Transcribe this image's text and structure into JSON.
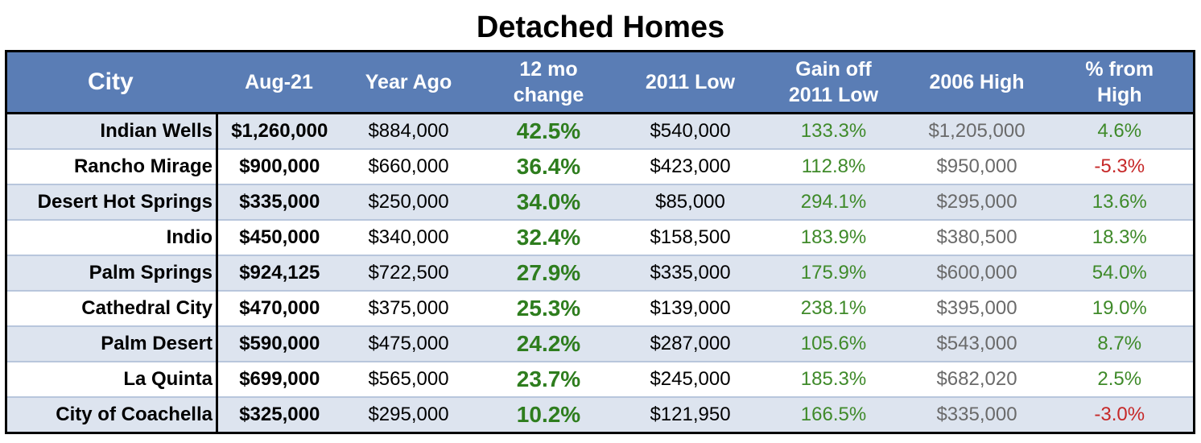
{
  "title": "Detached Homes",
  "columns": {
    "city": "City",
    "aug": "Aug-21",
    "year_ago": "Year Ago",
    "change_line1": "12 mo",
    "change_line2": "change",
    "low_2011": "2011 Low",
    "gain_line1": "Gain off",
    "gain_line2": "2011 Low",
    "high_2006": "2006 High",
    "pct_line1": "% from",
    "pct_line2": "High"
  },
  "colors": {
    "header_bg": "#5a7db5",
    "band_bg": "#dde4ef",
    "positive": "#3f8a2a",
    "change": "#2e7d1e",
    "negative": "#c62828",
    "high_text": "#6a6a6a"
  },
  "rows": [
    {
      "city": "Indian Wells",
      "aug": "$1,260,000",
      "year_ago": "$884,000",
      "change": "42.5%",
      "low_2011": "$540,000",
      "gain": "133.3%",
      "high_2006": "$1,205,000",
      "pct_from_high": "4.6%",
      "pct_sign": "pos"
    },
    {
      "city": "Rancho Mirage",
      "aug": "$900,000",
      "year_ago": "$660,000",
      "change": "36.4%",
      "low_2011": "$423,000",
      "gain": "112.8%",
      "high_2006": "$950,000",
      "pct_from_high": "-5.3%",
      "pct_sign": "neg"
    },
    {
      "city": "Desert Hot Springs",
      "aug": "$335,000",
      "year_ago": "$250,000",
      "change": "34.0%",
      "low_2011": "$85,000",
      "gain": "294.1%",
      "high_2006": "$295,000",
      "pct_from_high": "13.6%",
      "pct_sign": "pos"
    },
    {
      "city": "Indio",
      "aug": "$450,000",
      "year_ago": "$340,000",
      "change": "32.4%",
      "low_2011": "$158,500",
      "gain": "183.9%",
      "high_2006": "$380,500",
      "pct_from_high": "18.3%",
      "pct_sign": "pos"
    },
    {
      "city": "Palm Springs",
      "aug": "$924,125",
      "year_ago": "$722,500",
      "change": "27.9%",
      "low_2011": "$335,000",
      "gain": "175.9%",
      "high_2006": "$600,000",
      "pct_from_high": "54.0%",
      "pct_sign": "pos"
    },
    {
      "city": "Cathedral City",
      "aug": "$470,000",
      "year_ago": "$375,000",
      "change": "25.3%",
      "low_2011": "$139,000",
      "gain": "238.1%",
      "high_2006": "$395,000",
      "pct_from_high": "19.0%",
      "pct_sign": "pos"
    },
    {
      "city": "Palm Desert",
      "aug": "$590,000",
      "year_ago": "$475,000",
      "change": "24.2%",
      "low_2011": "$287,000",
      "gain": "105.6%",
      "high_2006": "$543,000",
      "pct_from_high": "8.7%",
      "pct_sign": "pos"
    },
    {
      "city": "La Quinta",
      "aug": "$699,000",
      "year_ago": "$565,000",
      "change": "23.7%",
      "low_2011": "$245,000",
      "gain": "185.3%",
      "high_2006": "$682,020",
      "pct_from_high": "2.5%",
      "pct_sign": "pos"
    },
    {
      "city": "City of Coachella",
      "aug": "$325,000",
      "year_ago": "$295,000",
      "change": "10.2%",
      "low_2011": "$121,950",
      "gain": "166.5%",
      "high_2006": "$335,000",
      "pct_from_high": "-3.0%",
      "pct_sign": "neg"
    }
  ]
}
